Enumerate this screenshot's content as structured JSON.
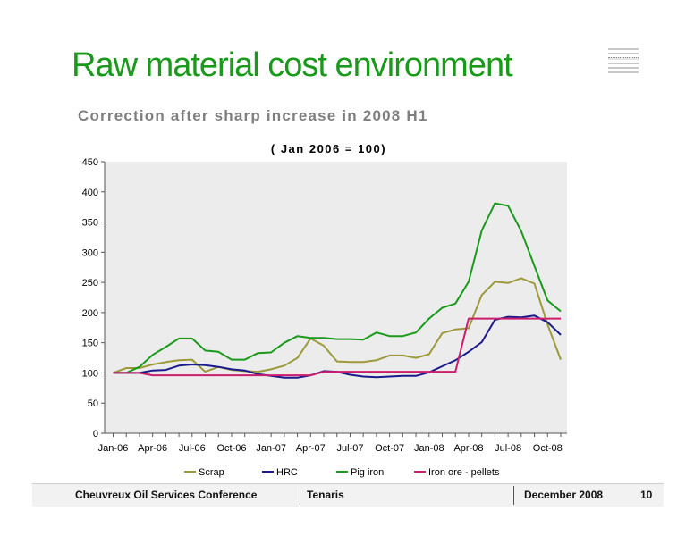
{
  "slide": {
    "title": "Raw material cost environment",
    "subtitle": "Correction after sharp increase in 2008 H1"
  },
  "footer": {
    "conference": "Cheuvreux Oil Services Conference",
    "company": "Tenaris",
    "date": "December 2008",
    "page": "10"
  },
  "chart_data": {
    "type": "line",
    "title": "( Jan 2006 = 100)",
    "xlabel": "",
    "ylabel": "",
    "ylim": [
      0,
      450
    ],
    "yticks": [
      0,
      50,
      100,
      150,
      200,
      250,
      300,
      350,
      400,
      450
    ],
    "x": [
      "Jan-06",
      "Feb-06",
      "Mar-06",
      "Apr-06",
      "May-06",
      "Jun-06",
      "Jul-06",
      "Aug-06",
      "Sep-06",
      "Oct-06",
      "Nov-06",
      "Dec-06",
      "Jan-07",
      "Feb-07",
      "Mar-07",
      "Apr-07",
      "May-07",
      "Jun-07",
      "Jul-07",
      "Aug-07",
      "Sep-07",
      "Oct-07",
      "Nov-07",
      "Dec-07",
      "Jan-08",
      "Feb-08",
      "Mar-08",
      "Apr-08",
      "May-08",
      "Jun-08",
      "Jul-08",
      "Aug-08",
      "Sep-08",
      "Oct-08",
      "Nov-08"
    ],
    "x_tick_labels": [
      "Jan-06",
      "Apr-06",
      "Jul-06",
      "Oct-06",
      "Jan-07",
      "Apr-07",
      "Jul-07",
      "Oct-07",
      "Jan-08",
      "Apr-08",
      "Jul-08",
      "Oct-08"
    ],
    "grid": false,
    "plot_background": "#ececec",
    "legend_position": "bottom",
    "series": [
      {
        "name": "Scrap",
        "color": "#9c9a3a",
        "values": [
          100,
          108,
          108,
          114,
          118,
          121,
          122,
          102,
          110,
          105,
          103,
          102,
          106,
          112,
          125,
          157,
          145,
          119,
          118,
          118,
          121,
          129,
          129,
          125,
          131,
          166,
          172,
          174,
          229,
          251,
          249,
          257,
          248,
          180,
          122
        ]
      },
      {
        "name": "HRC",
        "color": "#1a1a8c",
        "values": [
          100,
          100,
          100,
          104,
          105,
          112,
          114,
          113,
          110,
          106,
          104,
          98,
          95,
          92,
          92,
          96,
          103,
          102,
          97,
          94,
          93,
          94,
          95,
          95,
          101,
          111,
          121,
          135,
          151,
          188,
          193,
          192,
          195,
          184,
          163
        ]
      },
      {
        "name": "Pig iron",
        "color": "#1a9a1a",
        "values": [
          100,
          100,
          110,
          130,
          143,
          157,
          157,
          137,
          135,
          122,
          122,
          133,
          134,
          150,
          161,
          158,
          158,
          156,
          156,
          155,
          167,
          161,
          161,
          167,
          190,
          208,
          215,
          251,
          336,
          381,
          377,
          335,
          277,
          220,
          202
        ]
      },
      {
        "name": "Iron ore - pellets",
        "color": "#cc1c6c",
        "values": [
          100,
          100,
          100,
          96,
          96,
          96,
          96,
          96,
          96,
          96,
          96,
          96,
          96,
          96,
          96,
          96,
          102,
          102,
          102,
          102,
          102,
          102,
          102,
          102,
          102,
          102,
          102,
          190,
          190,
          190,
          190,
          190,
          190,
          190,
          190
        ]
      }
    ]
  }
}
